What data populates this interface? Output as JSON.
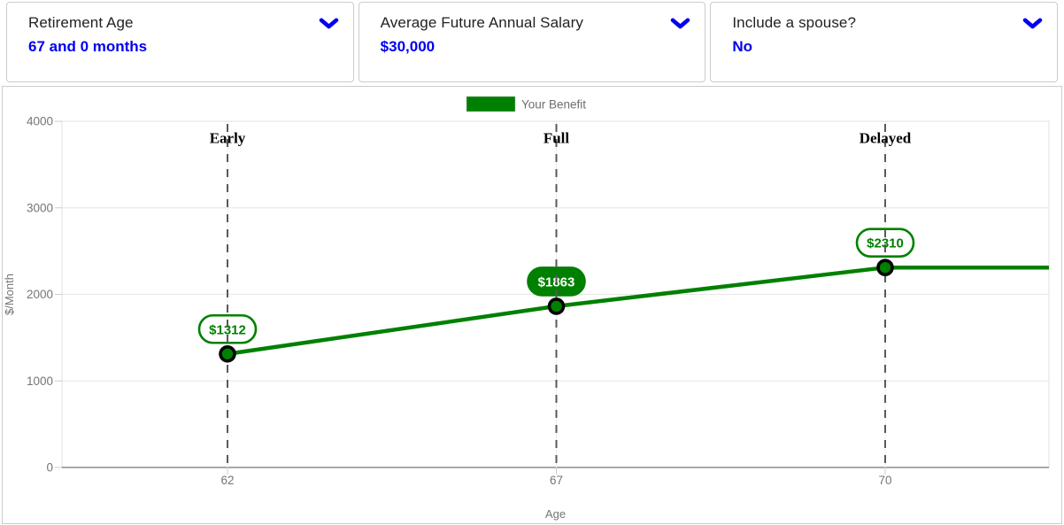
{
  "header": {
    "panels": [
      {
        "title": "Retirement Age",
        "value": "67 and 0 months"
      },
      {
        "title": "Average Future Annual Salary",
        "value": "$30,000"
      },
      {
        "title": "Include a spouse?",
        "value": "No"
      }
    ]
  },
  "colors": {
    "accent_blue": "#0000EE",
    "benefit_green": "#008000",
    "axis_text_gray": "#757575",
    "dash_gray": "#595959",
    "grid_gray": "#e6e6e6"
  },
  "chart_data": {
    "type": "line",
    "legend_label": "Your Benefit",
    "xlabel": "Age",
    "ylabel": "$/Month",
    "x": [
      62,
      67,
      70
    ],
    "series": [
      {
        "name": "Your Benefit",
        "color": "#008000",
        "values": [
          1312,
          1863,
          2310
        ]
      }
    ],
    "point_labels": [
      "$1312",
      "$1863",
      "$2310"
    ],
    "milestone_labels": [
      "Early",
      "Full",
      "Delayed"
    ],
    "selected_index": 1,
    "ylim": [
      0,
      4000
    ],
    "yticks": [
      0,
      1000,
      2000,
      3000,
      4000
    ],
    "grid": "horizontal",
    "legend_position": "top-center",
    "line_extends_right": true
  }
}
